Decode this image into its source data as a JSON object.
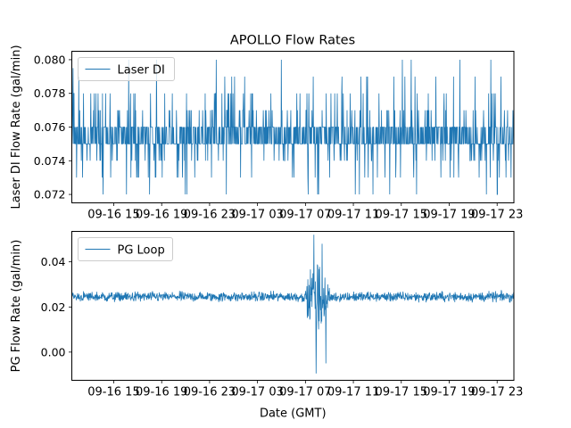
{
  "figure_title": "APOLLO Flow Rates",
  "colors": {
    "line": "#1f77b4",
    "axis": "#000000",
    "legend_border": "#cccccc",
    "background": "#ffffff"
  },
  "chart_data": [
    {
      "type": "line",
      "title": "APOLLO Flow Rates",
      "xlabel": "",
      "ylabel": "Laser DI Flow Rate (gal/min)",
      "legend": "Laser DI",
      "legend_loc": "upper-left",
      "x_unit": "hours since 09-16 11:30 GMT",
      "xlim": [
        0,
        36.9
      ],
      "x_ticks": [
        {
          "hour": 3.5,
          "label": "09-16 15"
        },
        {
          "hour": 7.5,
          "label": "09-16 19"
        },
        {
          "hour": 11.5,
          "label": "09-16 23"
        },
        {
          "hour": 15.5,
          "label": "09-17 03"
        },
        {
          "hour": 19.5,
          "label": "09-17 07"
        },
        {
          "hour": 23.5,
          "label": "09-17 11"
        },
        {
          "hour": 27.5,
          "label": "09-17 15"
        },
        {
          "hour": 31.5,
          "label": "09-17 19"
        },
        {
          "hour": 35.5,
          "label": "09-17 23"
        }
      ],
      "ylim": [
        0.0715,
        0.0805
      ],
      "y_ticks": [
        {
          "value": 0.072,
          "label": "0.072"
        },
        {
          "value": 0.074,
          "label": "0.074"
        },
        {
          "value": 0.076,
          "label": "0.076"
        },
        {
          "value": 0.078,
          "label": "0.078"
        },
        {
          "value": 0.08,
          "label": "0.080"
        }
      ],
      "signal": {
        "baseline_low": 0.075,
        "baseline_high": 0.076,
        "excursion_values": [
          0.072,
          0.073,
          0.074,
          0.077,
          0.078,
          0.079,
          0.08
        ],
        "sample_count": 1400,
        "notable_peaks": [
          {
            "hour": 0.1,
            "value": 0.0795
          },
          {
            "hour": 27.6,
            "value": 0.08
          },
          {
            "hour": 32.4,
            "value": 0.08
          },
          {
            "hour": 17.5,
            "value": 0.08
          },
          {
            "hour": 2.6,
            "value": 0.072
          },
          {
            "hour": 6.5,
            "value": 0.072
          },
          {
            "hour": 24.0,
            "value": 0.072
          },
          {
            "hour": 35.5,
            "value": 0.072
          }
        ]
      }
    },
    {
      "type": "line",
      "title": "",
      "xlabel": "Date (GMT)",
      "ylabel": "PG Flow Rate (gal/min)",
      "legend": "PG Loop",
      "legend_loc": "upper-left",
      "x_unit": "hours since 09-16 11:30 GMT",
      "xlim": [
        0,
        36.9
      ],
      "x_ticks": [
        {
          "hour": 3.5,
          "label": "09-16 15"
        },
        {
          "hour": 7.5,
          "label": "09-16 19"
        },
        {
          "hour": 11.5,
          "label": "09-16 23"
        },
        {
          "hour": 15.5,
          "label": "09-17 03"
        },
        {
          "hour": 19.5,
          "label": "09-17 07"
        },
        {
          "hour": 23.5,
          "label": "09-17 11"
        },
        {
          "hour": 27.5,
          "label": "09-17 15"
        },
        {
          "hour": 31.5,
          "label": "09-17 19"
        },
        {
          "hour": 35.5,
          "label": "09-17 23"
        }
      ],
      "ylim": [
        -0.0125,
        0.0535
      ],
      "y_ticks": [
        {
          "value": 0.0,
          "label": "0.00"
        },
        {
          "value": 0.02,
          "label": "0.02"
        },
        {
          "value": 0.04,
          "label": "0.04"
        }
      ],
      "signal": {
        "baseline": 0.0245,
        "noise": 0.0018,
        "sample_count": 1400,
        "disturbance": {
          "start_hour": 19.6,
          "end_hour": 21.8,
          "peak_hour": 20.4
        },
        "notable_points": [
          {
            "hour": 20.2,
            "value": 0.052
          },
          {
            "hour": 20.4,
            "value": -0.0095
          },
          {
            "hour": 20.9,
            "value": 0.048
          },
          {
            "hour": 21.2,
            "value": -0.005
          }
        ]
      }
    }
  ]
}
